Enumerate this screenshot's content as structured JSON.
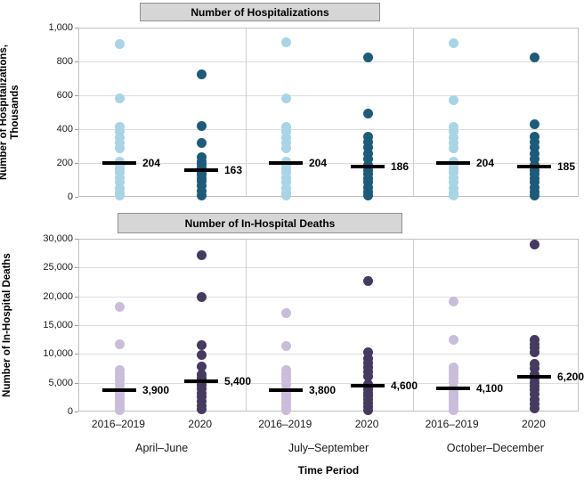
{
  "figure": {
    "top_panel_title": "Number of Hospitalizations",
    "bottom_panel_title": "Number of In-Hospital Deaths",
    "top_y_axis_title": "Number of Hospitalizations,\nThousands",
    "bottom_y_axis_title": "Number of In-Hospital Deaths",
    "x_axis_title": "Time Period"
  },
  "x_axis": {
    "cohort_labels": [
      "2016–2019",
      "2020"
    ],
    "period_labels": [
      "April–June",
      "July–September",
      "October–December"
    ]
  },
  "colors": {
    "top_2016_2019": "#a9d4e6",
    "top_2020": "#1e5b79",
    "bottom_2016_2019": "#c9bddb",
    "bottom_2020": "#453a5f",
    "median_line": "#000000",
    "title_bar_fill": "#d6d6d6",
    "title_bar_border": "#8f8f8f",
    "gridline": "#dcdcdc"
  },
  "chart_data": [
    {
      "type": "scatter",
      "variant": "strip-plot-with-median",
      "title": "Number of Hospitalizations",
      "ylabel": "Number of Hospitalizations, Thousands",
      "xlabel": "Time Period",
      "ylim": [
        0,
        1000
      ],
      "grid": true,
      "yticks": [
        {
          "v": 0,
          "label": "0"
        },
        {
          "v": 200,
          "label": "200"
        },
        {
          "v": 400,
          "label": "400"
        },
        {
          "v": 600,
          "label": "600"
        },
        {
          "v": 800,
          "label": "800"
        },
        {
          "v": 1000,
          "label": "1,000"
        }
      ],
      "groups": [
        {
          "period": "April–June",
          "cohort": "2016–2019",
          "median": 204,
          "median_label": "204",
          "color_key": "top_2016_2019",
          "values": [
            910,
            585,
            420,
            390,
            355,
            325,
            290,
            215,
            193,
            170,
            150,
            120,
            90,
            55,
            30,
            12
          ]
        },
        {
          "period": "April–June",
          "cohort": "2020",
          "median": 163,
          "median_label": "163",
          "color_key": "top_2020",
          "values": [
            730,
            425,
            325,
            240,
            215,
            195,
            178,
            166,
            160,
            148,
            135,
            115,
            95,
            70,
            40,
            12
          ]
        },
        {
          "period": "July–September",
          "cohort": "2016–2019",
          "median": 204,
          "median_label": "204",
          "color_key": "top_2016_2019",
          "values": [
            920,
            585,
            420,
            390,
            355,
            325,
            290,
            215,
            193,
            170,
            150,
            120,
            90,
            55,
            30,
            12
          ]
        },
        {
          "period": "July–September",
          "cohort": "2020",
          "median": 186,
          "median_label": "186",
          "color_key": "top_2020",
          "values": [
            830,
            495,
            360,
            330,
            300,
            260,
            230,
            190,
            182,
            160,
            140,
            115,
            90,
            60,
            35,
            12
          ]
        },
        {
          "period": "October–December",
          "cohort": "2016–2019",
          "median": 204,
          "median_label": "204",
          "color_key": "top_2016_2019",
          "values": [
            915,
            575,
            420,
            390,
            355,
            325,
            290,
            215,
            193,
            170,
            150,
            120,
            90,
            55,
            30,
            12
          ]
        },
        {
          "period": "October–December",
          "cohort": "2020",
          "median": 185,
          "median_label": "185",
          "color_key": "top_2020",
          "values": [
            830,
            435,
            360,
            330,
            300,
            260,
            230,
            190,
            180,
            160,
            140,
            115,
            90,
            60,
            35,
            12
          ]
        }
      ]
    },
    {
      "type": "scatter",
      "variant": "strip-plot-with-median",
      "title": "Number of In-Hospital Deaths",
      "ylabel": "Number of In-Hospital Deaths",
      "xlabel": "Time Period",
      "ylim": [
        0,
        30000
      ],
      "grid": true,
      "yticks": [
        {
          "v": 0,
          "label": "0"
        },
        {
          "v": 5000,
          "label": "5,000"
        },
        {
          "v": 10000,
          "label": "10,000"
        },
        {
          "v": 15000,
          "label": "15,000"
        },
        {
          "v": 20000,
          "label": "20,000"
        },
        {
          "v": 25000,
          "label": "25,000"
        },
        {
          "v": 30000,
          "label": "30,000"
        }
      ],
      "groups": [
        {
          "period": "April–June",
          "cohort": "2016–2019",
          "median": 3900,
          "median_label": "3,900",
          "color_key": "bottom_2016_2019",
          "values": [
            18300,
            11800,
            7300,
            6800,
            6200,
            5600,
            4900,
            4100,
            3700,
            3300,
            2900,
            2400,
            1900,
            1400,
            900,
            400
          ]
        },
        {
          "period": "April–June",
          "cohort": "2020",
          "median": 5400,
          "median_label": "5,400",
          "color_key": "bottom_2020",
          "values": [
            27300,
            20100,
            11700,
            10000,
            8000,
            6500,
            6000,
            5600,
            5200,
            4700,
            4100,
            3400,
            2700,
            2000,
            1200,
            500
          ]
        },
        {
          "period": "July–September",
          "cohort": "2016–2019",
          "median": 3800,
          "median_label": "3,800",
          "color_key": "bottom_2016_2019",
          "values": [
            17200,
            11500,
            7300,
            6800,
            6200,
            5600,
            4900,
            4000,
            3600,
            3300,
            2900,
            2400,
            1900,
            1400,
            900,
            400
          ]
        },
        {
          "period": "July–September",
          "cohort": "2020",
          "median": 4600,
          "median_label": "4,600",
          "color_key": "bottom_2020",
          "values": [
            22800,
            10400,
            9300,
            8600,
            7800,
            7000,
            6200,
            4800,
            4400,
            3900,
            3400,
            2800,
            2200,
            1600,
            1000,
            400
          ]
        },
        {
          "period": "October–December",
          "cohort": "2016–2019",
          "median": 4100,
          "median_label": "4,100",
          "color_key": "bottom_2016_2019",
          "values": [
            19300,
            12600,
            7800,
            7200,
            6600,
            6000,
            5300,
            4300,
            3900,
            3400,
            2900,
            2400,
            1900,
            1400,
            900,
            400
          ]
        },
        {
          "period": "October–December",
          "cohort": "2020",
          "median": 6200,
          "median_label": "6,200",
          "color_key": "bottom_2020",
          "values": [
            29100,
            12600,
            11900,
            11200,
            10400,
            8500,
            7600,
            6500,
            5900,
            5200,
            4600,
            3900,
            3100,
            2300,
            1500,
            700
          ]
        }
      ]
    }
  ]
}
